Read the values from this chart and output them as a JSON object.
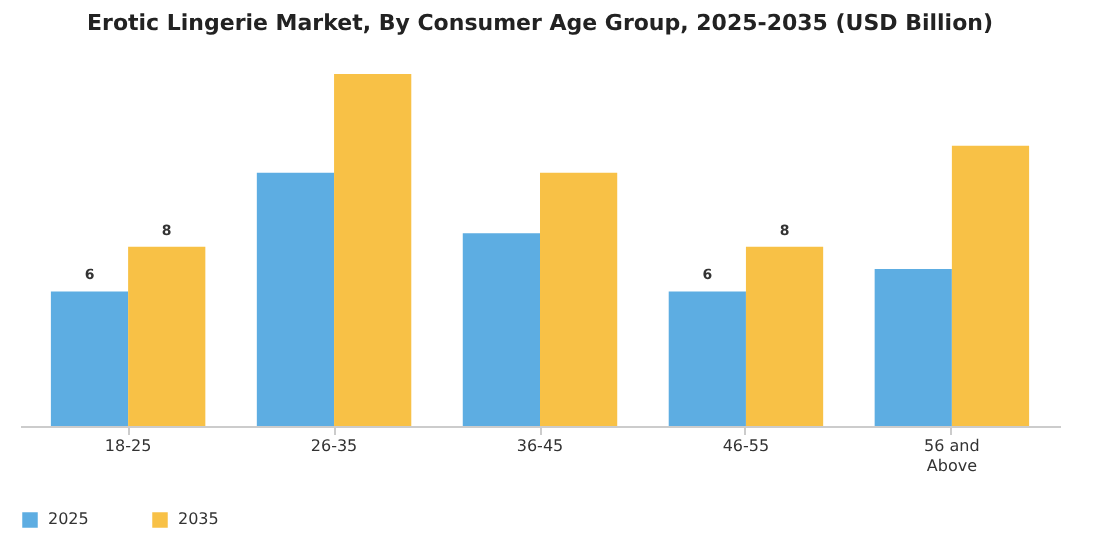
{
  "chart_data": {
    "type": "bar",
    "title": "Erotic Lingerie Market, By Consumer Age Group, 2025-2035 (USD Billion)",
    "categories": [
      "18-25",
      "26-35",
      "36-45",
      "46-55",
      "56 and Above"
    ],
    "series": [
      {
        "name": "2025",
        "color": "#5dade2",
        "values": [
          6,
          11.3,
          8.6,
          6,
          7.0
        ],
        "value_labels": [
          "6",
          null,
          null,
          "6",
          null
        ]
      },
      {
        "name": "2035",
        "color": "#f8c146",
        "values": [
          8,
          15.7,
          11.3,
          8,
          12.5
        ],
        "value_labels": [
          "8",
          null,
          null,
          "8",
          null
        ]
      }
    ],
    "legend": "bottom",
    "grid": false
  }
}
